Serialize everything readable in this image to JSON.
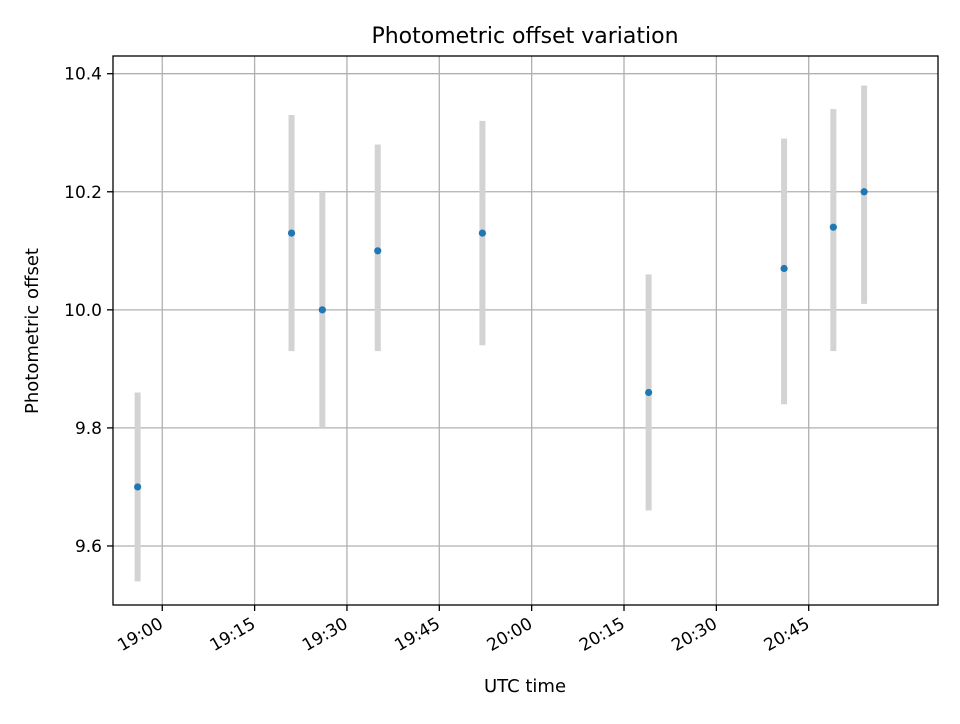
{
  "chart_data": {
    "type": "scatter",
    "title": "Photometric offset variation",
    "xlabel": "UTC time",
    "ylabel": "Photometric offset",
    "x_ticks": [
      "19:00",
      "19:15",
      "19:30",
      "19:45",
      "20:00",
      "20:15",
      "20:30",
      "20:45"
    ],
    "y_ticks": [
      "9.6",
      "9.8",
      "10.0",
      "10.2",
      "10.4"
    ],
    "xlim": [
      "18:52",
      "21:06"
    ],
    "ylim": [
      9.5,
      10.43
    ],
    "grid": true,
    "series": [
      {
        "points": [
          {
            "x": "18:56",
            "y": 9.7,
            "err_low": 9.54,
            "err_high": 9.86
          },
          {
            "x": "19:21",
            "y": 10.13,
            "err_low": 9.93,
            "err_high": 10.33
          },
          {
            "x": "19:26",
            "y": 10.0,
            "err_low": 9.8,
            "err_high": 10.2
          },
          {
            "x": "19:35",
            "y": 10.1,
            "err_low": 9.93,
            "err_high": 10.28
          },
          {
            "x": "19:52",
            "y": 10.13,
            "err_low": 9.94,
            "err_high": 10.32
          },
          {
            "x": "20:19",
            "y": 9.86,
            "err_low": 9.66,
            "err_high": 10.06
          },
          {
            "x": "20:41",
            "y": 10.07,
            "err_low": 9.84,
            "err_high": 10.29
          },
          {
            "x": "20:49",
            "y": 10.14,
            "err_low": 9.93,
            "err_high": 10.34
          },
          {
            "x": "20:54",
            "y": 10.2,
            "err_low": 10.01,
            "err_high": 10.38
          }
        ]
      }
    ],
    "colors": {
      "marker": "#1f77b4",
      "error_bar": "#d3d3d3",
      "grid": "#b0b0b0",
      "axes": "#000000"
    }
  }
}
